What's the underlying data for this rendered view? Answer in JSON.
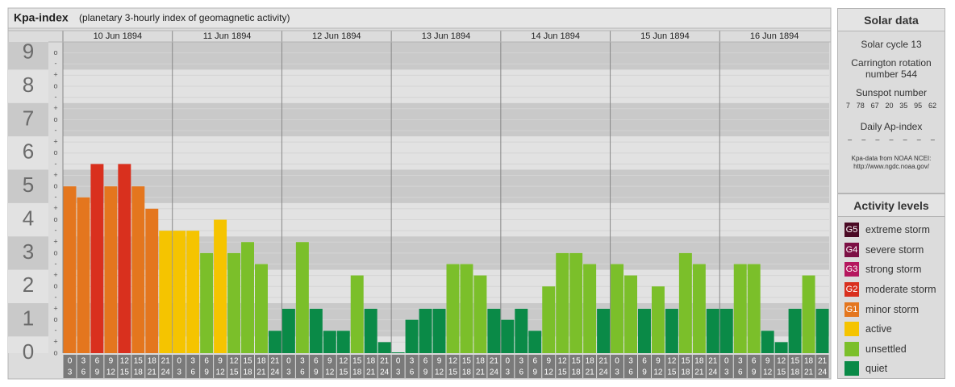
{
  "chart_data": {
    "type": "bar",
    "title": "Kpa-index",
    "subtitle": "(planetary 3-hourly index of geomagnetic activity)",
    "days": [
      "10 Jun 1894",
      "11 Jun 1894",
      "12 Jun 1894",
      "13 Jun 1894",
      "14 Jun 1894",
      "15 Jun 1894",
      "16 Jun 1894"
    ],
    "time_slots": [
      {
        "from": "0",
        "to": "3"
      },
      {
        "from": "3",
        "to": "6"
      },
      {
        "from": "6",
        "to": "9"
      },
      {
        "from": "9",
        "to": "12"
      },
      {
        "from": "12",
        "to": "15"
      },
      {
        "from": "15",
        "to": "18"
      },
      {
        "from": "18",
        "to": "21"
      },
      {
        "from": "21",
        "to": "24"
      }
    ],
    "values": [
      5,
      4.67,
      5.67,
      5,
      5.67,
      5,
      4.33,
      3.67,
      3.67,
      3.67,
      3,
      4,
      3,
      3.33,
      2.67,
      0.67,
      1.33,
      3.33,
      1.33,
      0.67,
      0.67,
      2.33,
      1.33,
      0.33,
      0,
      1,
      1.33,
      1.33,
      2.67,
      2.67,
      2.33,
      1.33,
      1,
      1.33,
      0.67,
      2,
      3,
      3,
      2.67,
      1.33,
      2.67,
      2.33,
      1.33,
      2,
      1.33,
      3,
      2.67,
      1.33,
      1.33,
      2.67,
      2.67,
      0.67,
      0.33,
      1.33,
      2.33,
      1.33
    ],
    "colors": [
      "#e4761e",
      "#e4761e",
      "#d9301e",
      "#e4761e",
      "#d9301e",
      "#e4761e",
      "#e4761e",
      "#f5c400",
      "#f5c400",
      "#f5c400",
      "#7bbf2a",
      "#f5c400",
      "#7bbf2a",
      "#7bbf2a",
      "#7bbf2a",
      "#0a8a47",
      "#0a8a47",
      "#7bbf2a",
      "#0a8a47",
      "#0a8a47",
      "#0a8a47",
      "#7bbf2a",
      "#0a8a47",
      "#0a8a47",
      "#0a8a47",
      "#0a8a47",
      "#0a8a47",
      "#0a8a47",
      "#7bbf2a",
      "#7bbf2a",
      "#7bbf2a",
      "#0a8a47",
      "#0a8a47",
      "#0a8a47",
      "#0a8a47",
      "#7bbf2a",
      "#7bbf2a",
      "#7bbf2a",
      "#7bbf2a",
      "#0a8a47",
      "#7bbf2a",
      "#7bbf2a",
      "#0a8a47",
      "#7bbf2a",
      "#0a8a47",
      "#7bbf2a",
      "#7bbf2a",
      "#0a8a47",
      "#0a8a47",
      "#7bbf2a",
      "#7bbf2a",
      "#0a8a47",
      "#0a8a47",
      "#0a8a47",
      "#7bbf2a",
      "#0a8a47"
    ],
    "ylim": [
      0,
      9.33
    ],
    "yticks": [
      0,
      1,
      2,
      3,
      4,
      5,
      6,
      7,
      8,
      9
    ],
    "minor_ticks": [
      {
        "value": 0,
        "label": "o"
      },
      {
        "value": 0.33,
        "label": "+"
      },
      {
        "value": 0.67,
        "label": "-"
      },
      {
        "value": 1,
        "label": "o"
      },
      {
        "value": 1.33,
        "label": "+"
      },
      {
        "value": 1.67,
        "label": "-"
      },
      {
        "value": 2,
        "label": "o"
      },
      {
        "value": 2.33,
        "label": "+"
      },
      {
        "value": 2.67,
        "label": "-"
      },
      {
        "value": 3,
        "label": "o"
      },
      {
        "value": 3.33,
        "label": "+"
      },
      {
        "value": 3.67,
        "label": "-"
      },
      {
        "value": 4,
        "label": "o"
      },
      {
        "value": 4.33,
        "label": "+"
      },
      {
        "value": 4.67,
        "label": "-"
      },
      {
        "value": 5,
        "label": "o"
      },
      {
        "value": 5.33,
        "label": "+"
      },
      {
        "value": 5.67,
        "label": "-"
      },
      {
        "value": 6,
        "label": "o"
      },
      {
        "value": 6.33,
        "label": "+"
      },
      {
        "value": 6.67,
        "label": "-"
      },
      {
        "value": 7,
        "label": "o"
      },
      {
        "value": 7.33,
        "label": "+"
      },
      {
        "value": 7.67,
        "label": "-"
      },
      {
        "value": 8,
        "label": "o"
      },
      {
        "value": 8.33,
        "label": "+"
      },
      {
        "value": 8.67,
        "label": "-"
      },
      {
        "value": 9,
        "label": "o"
      }
    ],
    "grid": true
  },
  "solar_data": {
    "title": "Solar data",
    "solar_cycle": "Solar cycle 13",
    "carrington": "Carrington rotation number 544",
    "sunspot_title": "Sunspot number",
    "sunspot_numbers": [
      7,
      78,
      67,
      20,
      35,
      95,
      62
    ],
    "ap_title": "Daily Ap-index",
    "ap_values": [
      "–",
      "–",
      "–",
      "–",
      "–",
      "–",
      "–"
    ],
    "source": "Kpa-data from NOAA NCEI:",
    "source_url": "http://www.ngdc.noaa.gov/"
  },
  "activity_levels": {
    "title": "Activity levels",
    "items": [
      {
        "badge": "G5",
        "label": "extreme storm",
        "color": "#4a0a24"
      },
      {
        "badge": "G4",
        "label": "severe storm",
        "color": "#7c1044"
      },
      {
        "badge": "G3",
        "label": "strong storm",
        "color": "#b5175e"
      },
      {
        "badge": "G2",
        "label": "moderate storm",
        "color": "#d9301e"
      },
      {
        "badge": "G1",
        "label": "minor storm",
        "color": "#e4761e"
      },
      {
        "label": "active",
        "color": "#f5c400"
      },
      {
        "label": "unsettled",
        "color": "#7bbf2a"
      },
      {
        "label": "quiet",
        "color": "#0a8a47"
      }
    ]
  }
}
